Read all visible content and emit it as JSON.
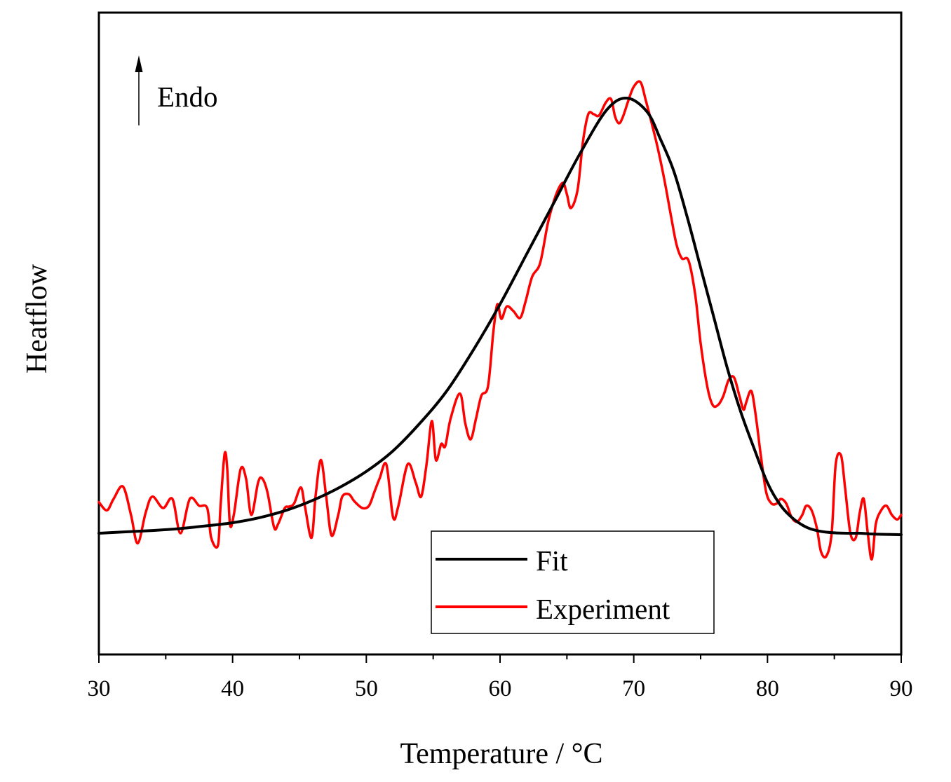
{
  "chart_data": {
    "type": "line",
    "title": "",
    "xlabel": "Temperature / °C",
    "ylabel": "Heatflow",
    "xlim": [
      30,
      90
    ],
    "ylim": [
      -0.2,
      1.05
    ],
    "yticks_shown": false,
    "x_ticks": [
      30,
      40,
      50,
      60,
      70,
      80,
      90
    ],
    "x_tick_labels": [
      "30",
      "40",
      "50",
      "60",
      "70",
      "80",
      "90"
    ],
    "annotation": {
      "text": "Endo",
      "arrow": "up"
    },
    "legend": {
      "position": "bottom-right",
      "entries": [
        "Fit",
        "Experiment"
      ]
    },
    "series": [
      {
        "name": "Fit",
        "color": "#000000",
        "x": [
          30,
          32,
          34,
          36,
          38,
          40,
          42,
          44,
          46,
          48,
          50,
          52,
          54,
          56,
          58,
          60,
          62,
          64,
          66,
          68,
          69.5,
          71,
          72,
          73,
          74,
          75,
          76,
          77,
          78,
          79,
          80,
          81,
          82,
          83,
          84,
          85,
          86,
          87,
          88,
          90
        ],
        "y": [
          0.0,
          0.003,
          0.006,
          0.01,
          0.016,
          0.023,
          0.034,
          0.05,
          0.072,
          0.1,
          0.135,
          0.18,
          0.24,
          0.31,
          0.4,
          0.5,
          0.61,
          0.72,
          0.83,
          0.925,
          0.95,
          0.92,
          0.86,
          0.79,
          0.69,
          0.58,
          0.47,
          0.36,
          0.265,
          0.185,
          0.11,
          0.06,
          0.03,
          0.012,
          0.004,
          0.001,
          0.0,
          0.0,
          -0.002,
          -0.003
        ]
      },
      {
        "name": "Experiment",
        "color": "#ff0000",
        "x": [
          30,
          30.6,
          31.1,
          31.8,
          32.4,
          32.9,
          33.5,
          34.0,
          34.8,
          35.5,
          36.1,
          36.8,
          37.5,
          38.1,
          38.4,
          38.9,
          39.1,
          39.4,
          39.6,
          39.8,
          40.1,
          40.6,
          41.0,
          41.4,
          41.9,
          42.2,
          42.6,
          43.1,
          43.4,
          43.9,
          44.2,
          44.6,
          45.1,
          45.4,
          45.9,
          46.2,
          46.6,
          47.0,
          47.4,
          47.9,
          48.2,
          48.7,
          49.1,
          49.7,
          50.2,
          50.6,
          51.0,
          51.5,
          52.0,
          52.4,
          53.1,
          53.7,
          54.1,
          54.5,
          54.9,
          55.2,
          55.6,
          55.9,
          56.3,
          57.0,
          57.4,
          57.8,
          58.2,
          58.6,
          59.1,
          59.5,
          59.8,
          60.1,
          60.5,
          61.0,
          61.5,
          61.9,
          62.4,
          63.0,
          63.6,
          64.2,
          64.7,
          65.0,
          65.3,
          65.8,
          66.2,
          66.6,
          67.0,
          67.4,
          67.9,
          68.3,
          68.6,
          68.9,
          69.2,
          69.6,
          70.0,
          70.5,
          70.9,
          71.3,
          71.8,
          72.3,
          72.8,
          73.2,
          73.6,
          74.1,
          74.6,
          75.0,
          75.5,
          75.9,
          76.3,
          76.7,
          77.1,
          77.5,
          77.9,
          78.2,
          78.4,
          78.7,
          78.9,
          79.2,
          79.5,
          79.9,
          80.3,
          80.7,
          81.0,
          81.4,
          81.8,
          82.2,
          82.6,
          82.9,
          83.3,
          83.7,
          84.0,
          84.4,
          84.8,
          85.1,
          85.5,
          85.8,
          86.2,
          86.6,
          86.9,
          87.2,
          87.5,
          87.8,
          88.1,
          88.5,
          88.9,
          89.3,
          89.7,
          90
        ],
        "y": [
          0.068,
          0.05,
          0.075,
          0.102,
          0.04,
          -0.022,
          0.045,
          0.08,
          0.055,
          0.075,
          0.0,
          0.075,
          0.06,
          0.055,
          -0.01,
          -0.027,
          0.06,
          0.173,
          0.14,
          0.02,
          0.042,
          0.14,
          0.12,
          0.04,
          0.11,
          0.12,
          0.09,
          0.013,
          0.02,
          0.055,
          0.058,
          0.065,
          0.1,
          0.06,
          -0.01,
          0.08,
          0.16,
          0.08,
          -0.005,
          0.04,
          0.08,
          0.085,
          0.07,
          0.055,
          0.06,
          0.09,
          0.12,
          0.15,
          0.035,
          0.06,
          0.151,
          0.11,
          0.08,
          0.15,
          0.245,
          0.16,
          0.195,
          0.19,
          0.25,
          0.305,
          0.24,
          0.205,
          0.25,
          0.3,
          0.321,
          0.44,
          0.5,
          0.468,
          0.495,
          0.485,
          0.47,
          0.505,
          0.56,
          0.59,
          0.68,
          0.74,
          0.765,
          0.74,
          0.71,
          0.75,
          0.855,
          0.915,
          0.915,
          0.912,
          0.94,
          0.948,
          0.91,
          0.895,
          0.91,
          0.945,
          0.975,
          0.985,
          0.945,
          0.9,
          0.84,
          0.77,
          0.69,
          0.63,
          0.6,
          0.595,
          0.52,
          0.415,
          0.32,
          0.28,
          0.28,
          0.3,
          0.335,
          0.34,
          0.3,
          0.27,
          0.285,
          0.31,
          0.3,
          0.24,
          0.17,
          0.09,
          0.065,
          0.065,
          0.075,
          0.065,
          0.035,
          0.025,
          0.04,
          0.06,
          0.05,
          0.01,
          -0.04,
          -0.05,
          0.0,
          0.15,
          0.17,
          0.1,
          0.0,
          -0.01,
          0.045,
          0.075,
          0.0,
          -0.057,
          0.02,
          0.05,
          0.06,
          0.04,
          0.03,
          0.04
        ]
      }
    ]
  }
}
